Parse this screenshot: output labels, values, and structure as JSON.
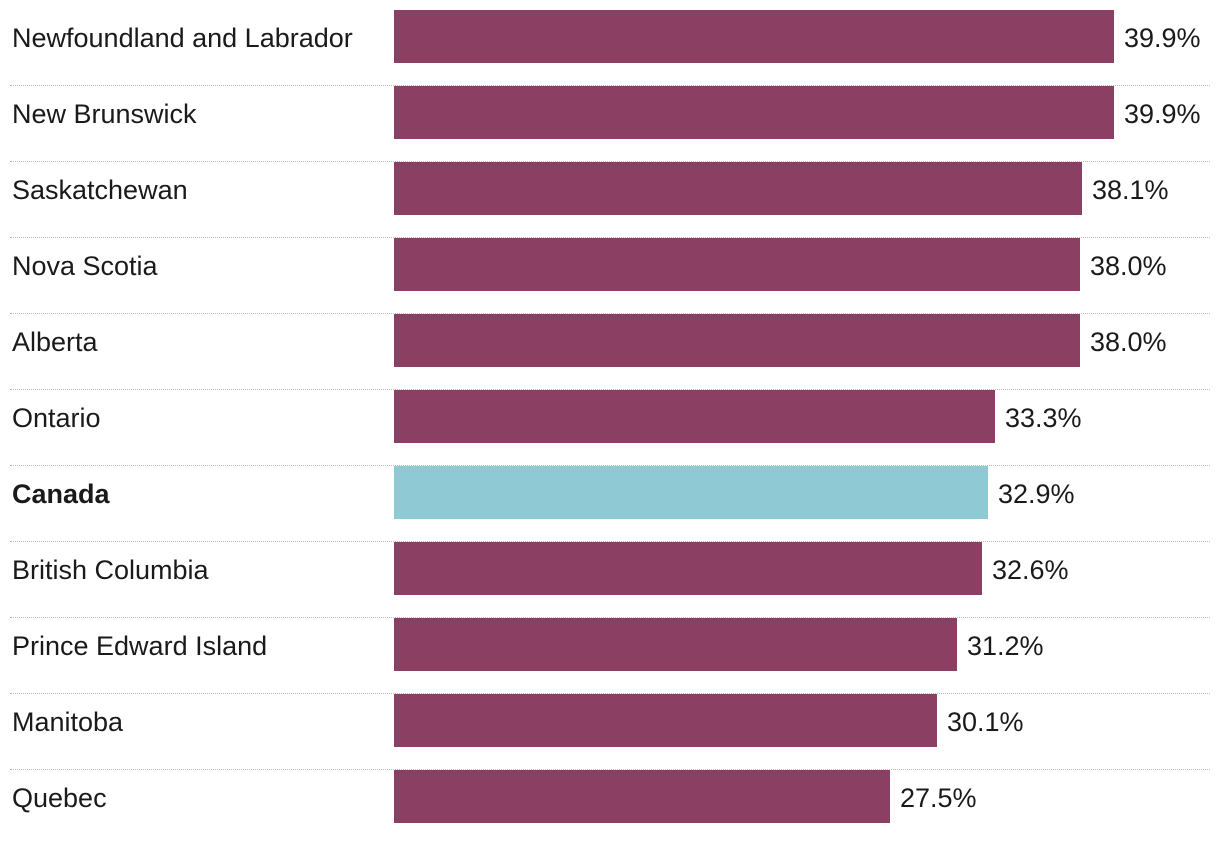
{
  "chart_data": {
    "type": "bar",
    "orientation": "horizontal",
    "title": "",
    "xlabel": "",
    "ylabel": "",
    "value_suffix": "%",
    "xlim": [
      0,
      39.9
    ],
    "grid": false,
    "legend": "none",
    "colors": {
      "default": "#8b3f62",
      "highlight": "#8ec9d4"
    },
    "categories": [
      "Newfoundland and Labrador",
      "New Brunswick",
      "Saskatchewan",
      "Nova Scotia",
      "Alberta",
      "Ontario",
      "Canada",
      "British Columbia",
      "Prince Edward Island",
      "Manitoba",
      "Quebec"
    ],
    "values": [
      39.9,
      39.9,
      38.1,
      38.0,
      38.0,
      33.3,
      32.9,
      32.6,
      31.2,
      30.1,
      27.5
    ],
    "value_labels": [
      "39.9%",
      "39.9%",
      "38.1%",
      "38.0%",
      "38.0%",
      "33.3%",
      "32.9%",
      "32.6%",
      "31.2%",
      "30.1%",
      "27.5%"
    ],
    "highlight_category": "Canada"
  }
}
